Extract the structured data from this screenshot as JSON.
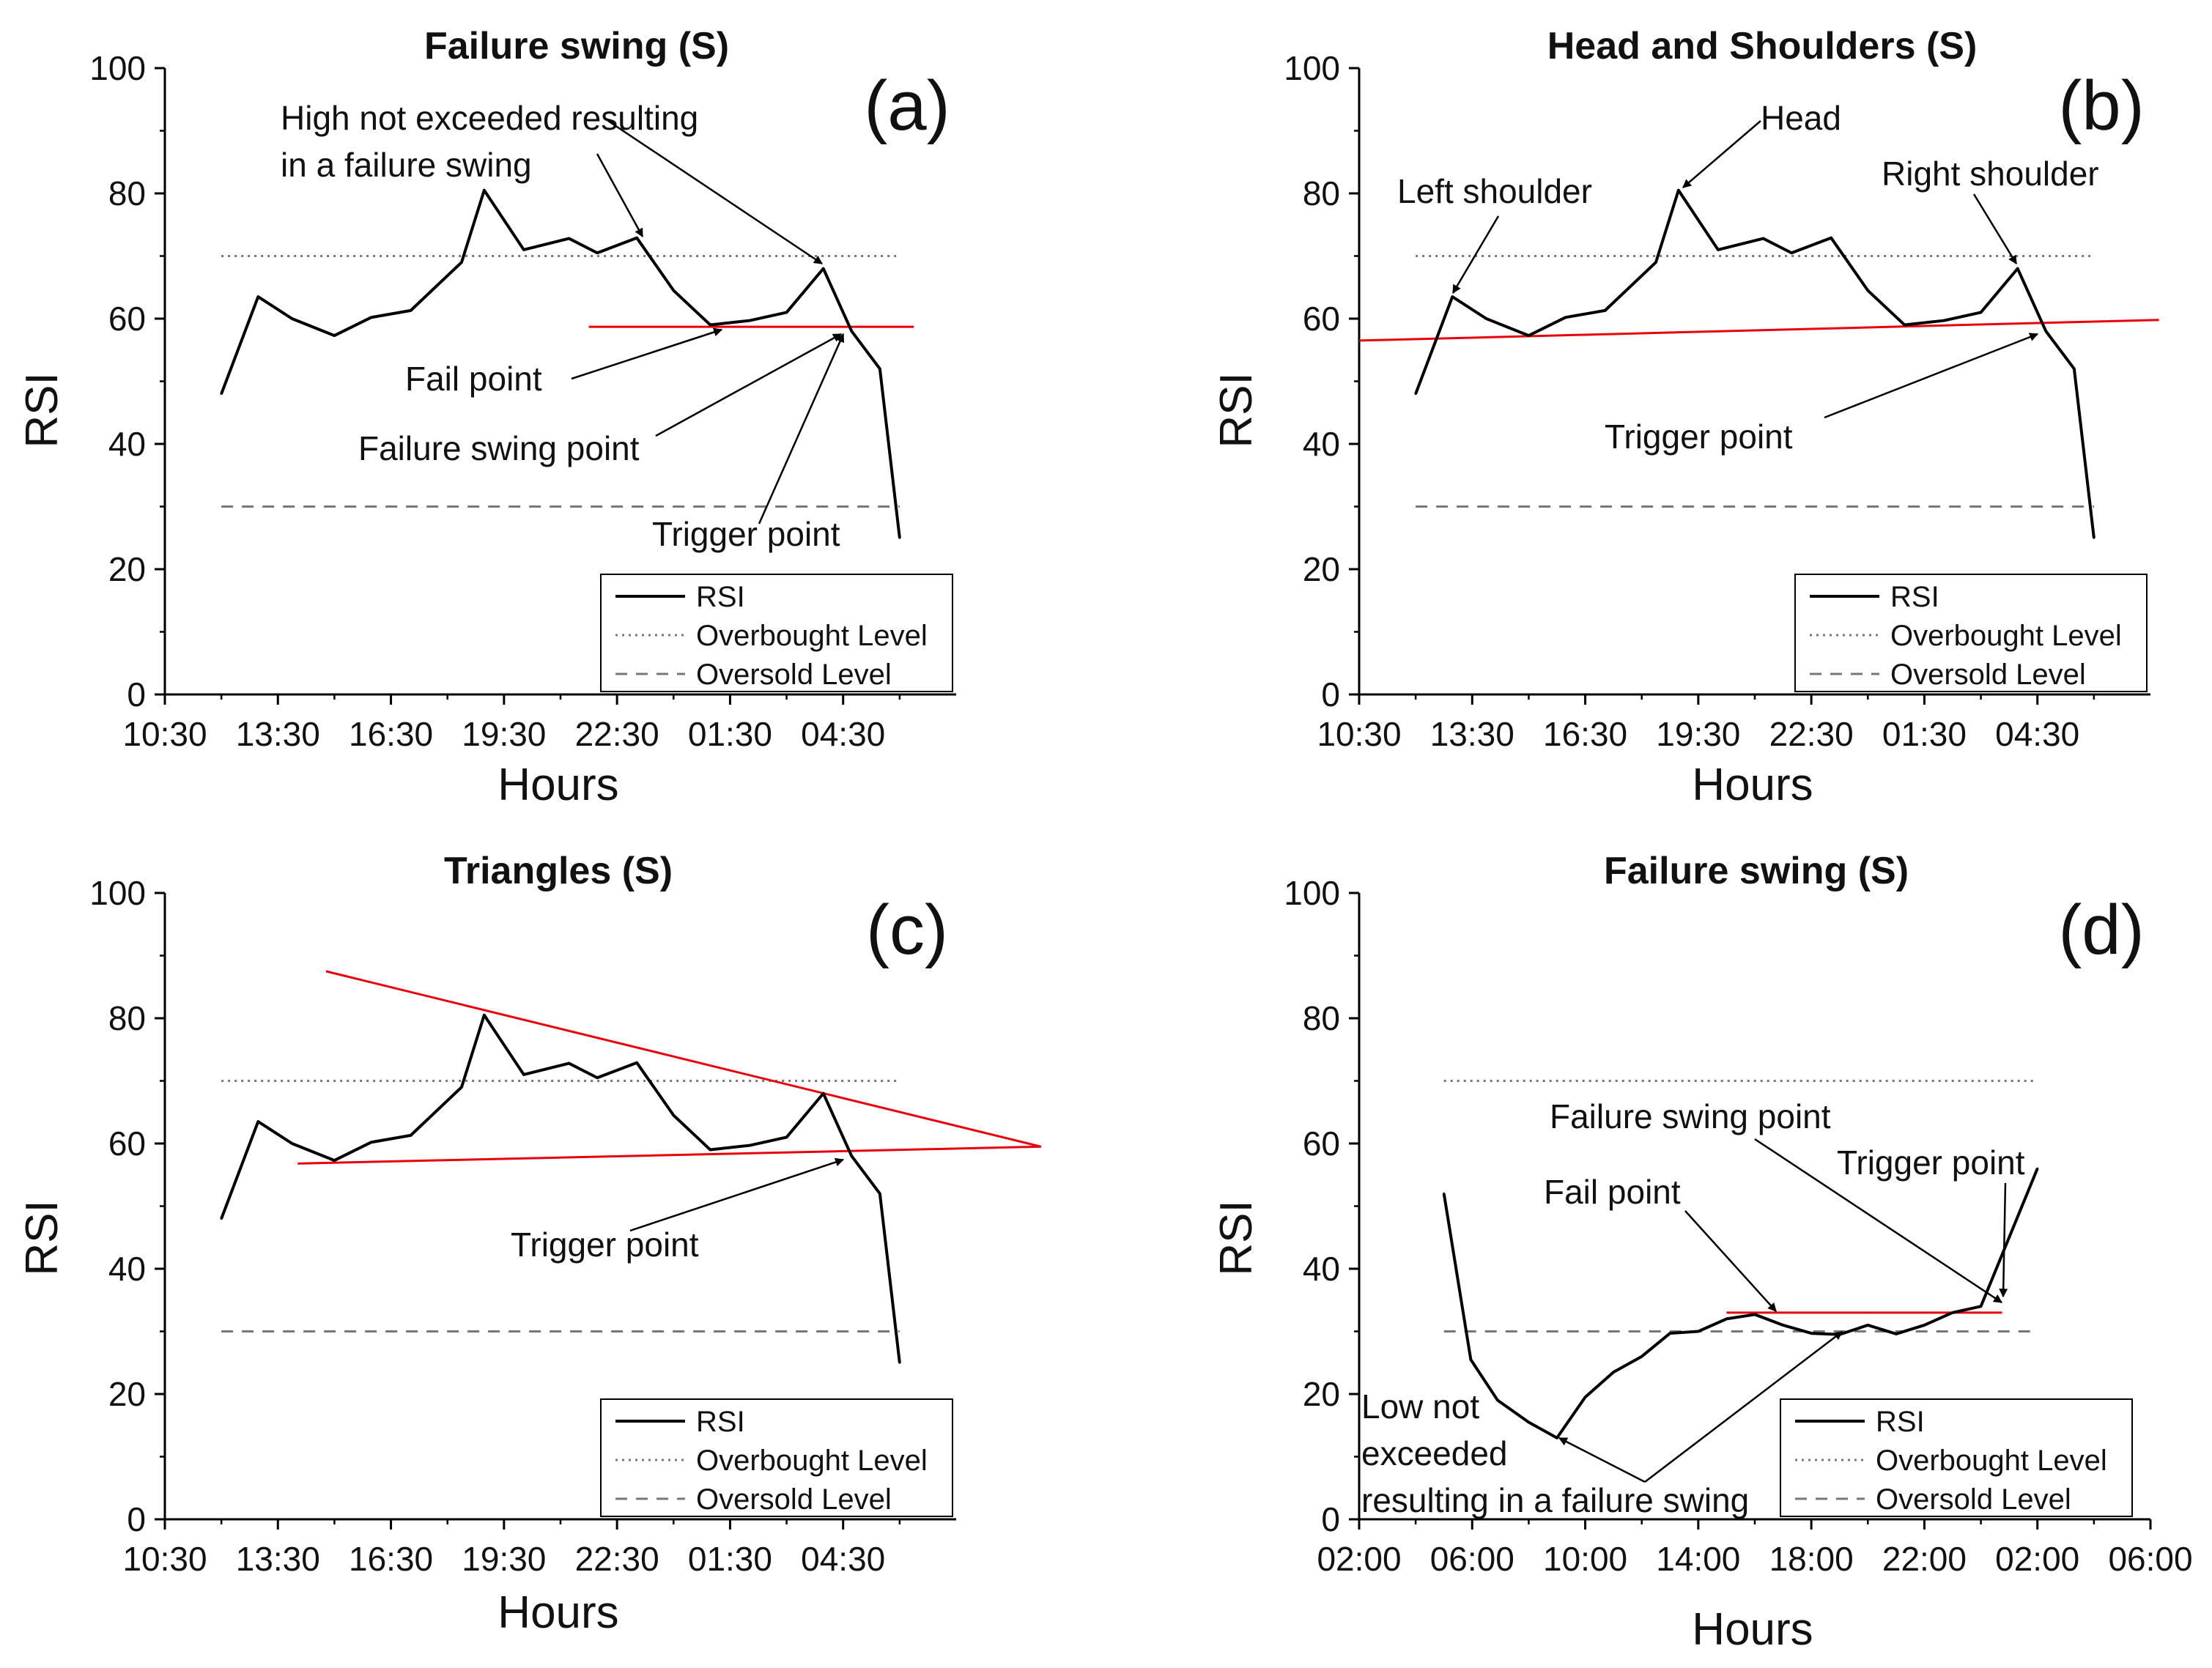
{
  "chart_data": [
    {
      "type": "line",
      "panel_label": "(a)",
      "title": "Failure swing (S)",
      "xlabel": "Hours",
      "ylabel": "RSI",
      "ylim": [
        0,
        100
      ],
      "xlim": [
        0,
        28
      ],
      "x_tick_positions": [
        0,
        4,
        8,
        12,
        16,
        20,
        24
      ],
      "x_tick_labels": [
        "10:30",
        "13:30",
        "16:30",
        "19:30",
        "22:30",
        "01:30",
        "04:30"
      ],
      "y_ticks": [
        0,
        20,
        40,
        60,
        80,
        100
      ],
      "series": [
        {
          "name": "RSI",
          "x": [
            2,
            3.3,
            4.5,
            6,
            7.3,
            8.7,
            10.5,
            11.3,
            12.7,
            14.3,
            15.3,
            16.7,
            18,
            19.3,
            20.7,
            22,
            23.3,
            24.3,
            25.3,
            26
          ],
          "y": [
            48,
            63.5,
            60,
            57.3,
            60.2,
            61.3,
            69,
            80.5,
            71,
            72.8,
            70.5,
            72.9,
            64.5,
            59,
            59.7,
            61,
            68,
            58,
            52,
            25
          ]
        },
        {
          "name": "Overbought Level",
          "x": [
            2,
            26
          ],
          "y": [
            70,
            70
          ]
        },
        {
          "name": "Oversold Level",
          "x": [
            2,
            26
          ],
          "y": [
            30,
            30
          ]
        }
      ],
      "trend_lines": [
        {
          "x": [
            15,
            26.5
          ],
          "y": [
            58.7,
            58.7
          ],
          "color": "#e8000b"
        }
      ],
      "annotations": [
        {
          "lines": [
            "High not exceeded resulting",
            "in a failure swing"
          ]
        },
        {
          "lines": [
            "Fail point"
          ]
        },
        {
          "lines": [
            "Failure swing point"
          ]
        },
        {
          "lines": [
            "Trigger point"
          ]
        }
      ],
      "legend": {
        "position": "bottom-right",
        "entries": [
          "RSI",
          "Overbought Level",
          "Oversold Level"
        ]
      }
    },
    {
      "type": "line",
      "panel_label": "(b)",
      "title": "Head and Shoulders (S)",
      "xlabel": "Hours",
      "ylabel": "RSI",
      "ylim": [
        0,
        100
      ],
      "xlim": [
        0,
        28
      ],
      "x_tick_positions": [
        0,
        4,
        8,
        12,
        16,
        20,
        24
      ],
      "x_tick_labels": [
        "10:30",
        "13:30",
        "16:30",
        "19:30",
        "22:30",
        "01:30",
        "04:30"
      ],
      "y_ticks": [
        0,
        20,
        40,
        60,
        80,
        100
      ],
      "series": [
        {
          "name": "RSI",
          "x": [
            2,
            3.3,
            4.5,
            6,
            7.3,
            8.7,
            10.5,
            11.3,
            12.7,
            14.3,
            15.3,
            16.7,
            18,
            19.3,
            20.7,
            22,
            23.3,
            24.3,
            25.3,
            26
          ],
          "y": [
            48,
            63.5,
            60,
            57.3,
            60.2,
            61.3,
            69,
            80.5,
            71,
            72.8,
            70.5,
            72.9,
            64.5,
            59,
            59.7,
            61,
            68,
            58,
            52,
            25
          ]
        },
        {
          "name": "Overbought Level",
          "x": [
            2,
            26
          ],
          "y": [
            70,
            70
          ]
        },
        {
          "name": "Oversold Level",
          "x": [
            2,
            26
          ],
          "y": [
            30,
            30
          ]
        }
      ],
      "trend_lines": [
        {
          "x": [
            0,
            28.3
          ],
          "y": [
            56.5,
            59.8
          ],
          "color": "#e8000b"
        }
      ],
      "annotations": [
        {
          "lines": [
            "Head"
          ]
        },
        {
          "lines": [
            "Left shoulder"
          ]
        },
        {
          "lines": [
            "Right shoulder"
          ]
        },
        {
          "lines": [
            "Trigger point"
          ]
        }
      ],
      "legend": {
        "position": "bottom-right",
        "entries": [
          "RSI",
          "Overbought Level",
          "Oversold Level"
        ]
      }
    },
    {
      "type": "line",
      "panel_label": "(c)",
      "title": "Triangles (S)",
      "xlabel": "Hours",
      "ylabel": "RSI",
      "ylim": [
        0,
        100
      ],
      "xlim": [
        0,
        28
      ],
      "x_tick_positions": [
        0,
        4,
        8,
        12,
        16,
        20,
        24
      ],
      "x_tick_labels": [
        "10:30",
        "13:30",
        "16:30",
        "19:30",
        "22:30",
        "01:30",
        "04:30"
      ],
      "y_ticks": [
        0,
        20,
        40,
        60,
        80,
        100
      ],
      "series": [
        {
          "name": "RSI",
          "x": [
            2,
            3.3,
            4.5,
            6,
            7.3,
            8.7,
            10.5,
            11.3,
            12.7,
            14.3,
            15.3,
            16.7,
            18,
            19.3,
            20.7,
            22,
            23.3,
            24.3,
            25.3,
            26
          ],
          "y": [
            48,
            63.5,
            60,
            57.3,
            60.2,
            61.3,
            69,
            80.5,
            71,
            72.8,
            70.5,
            72.9,
            64.5,
            59,
            59.7,
            61,
            68,
            58,
            52,
            25
          ]
        },
        {
          "name": "Overbought Level",
          "x": [
            2,
            26
          ],
          "y": [
            70,
            70
          ]
        },
        {
          "name": "Oversold Level",
          "x": [
            2,
            26
          ],
          "y": [
            30,
            30
          ]
        }
      ],
      "trend_lines": [
        {
          "x": [
            5.7,
            31
          ],
          "y": [
            87.5,
            59.5
          ],
          "color": "#e8000b"
        },
        {
          "x": [
            4.7,
            31
          ],
          "y": [
            56.8,
            59.5
          ],
          "color": "#e8000b"
        }
      ],
      "annotations": [
        {
          "lines": [
            "Trigger point"
          ]
        }
      ],
      "legend": {
        "position": "bottom-right",
        "entries": [
          "RSI",
          "Overbought Level",
          "Oversold Level"
        ]
      }
    },
    {
      "type": "line",
      "panel_label": "(d)",
      "title": "Failure swing (S)",
      "xlabel": "Hours",
      "ylabel": "RSI",
      "ylim": [
        0,
        100
      ],
      "xlim": [
        0,
        56
      ],
      "x_tick_positions": [
        0,
        8,
        16,
        24,
        32,
        40,
        48,
        56
      ],
      "x_tick_labels": [
        "02:00",
        "06:00",
        "10:00",
        "14:00",
        "18:00",
        "22:00",
        "02:00",
        "06:00"
      ],
      "y_ticks": [
        0,
        20,
        40,
        60,
        80,
        100
      ],
      "series": [
        {
          "name": "RSI",
          "x": [
            6,
            7.9,
            9.8,
            12,
            14,
            16,
            18,
            20,
            22,
            24,
            26,
            28,
            30,
            32,
            34,
            36,
            38,
            40,
            42,
            44,
            46,
            48
          ],
          "y": [
            52,
            25.5,
            19,
            15.5,
            13,
            19.5,
            23.5,
            26,
            29.7,
            30,
            32,
            32.7,
            31,
            29.7,
            29.5,
            31,
            29.6,
            31,
            33,
            34,
            45,
            56
          ]
        },
        {
          "name": "Overbought Level",
          "x": [
            6,
            48
          ],
          "y": [
            70,
            70
          ]
        },
        {
          "name": "Oversold Level",
          "x": [
            6,
            48
          ],
          "y": [
            30,
            30
          ]
        }
      ],
      "trend_lines": [
        {
          "x": [
            26,
            45.5
          ],
          "y": [
            33,
            33
          ],
          "color": "#e8000b"
        }
      ],
      "annotations": [
        {
          "lines": [
            "Failure swing point"
          ]
        },
        {
          "lines": [
            "Trigger point"
          ]
        },
        {
          "lines": [
            "Fail point"
          ]
        },
        {
          "lines": [
            "Low not",
            "exceeded",
            "resulting in a failure swing"
          ]
        }
      ],
      "legend": {
        "position": "bottom-right",
        "entries": [
          "RSI",
          "Overbought Level",
          "Oversold Level"
        ]
      }
    }
  ]
}
